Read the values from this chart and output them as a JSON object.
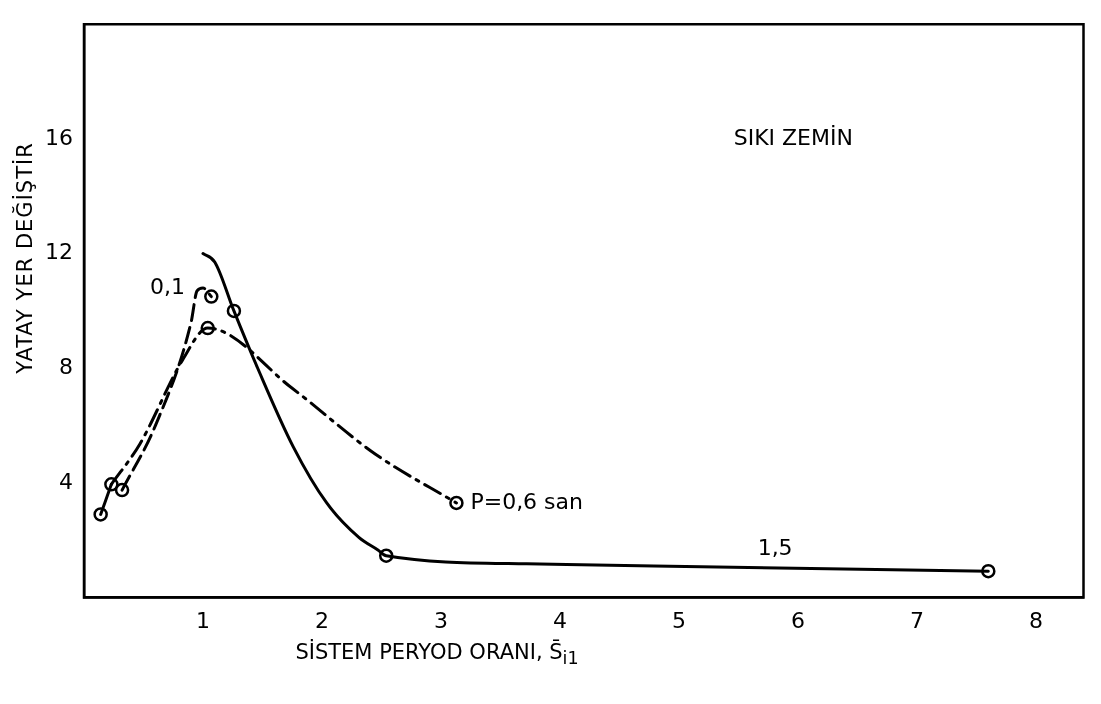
{
  "chart_data": {
    "type": "line",
    "xlabel": "SİSTEM PERYOD ORANI, S̄$_{i1}$",
    "ylabel": "YATAY YER DEĞİŞTİR",
    "annotations": [
      "SIKI ZEMİN"
    ],
    "xlim": [
      0,
      8.4
    ],
    "xticks": [
      1,
      2,
      3,
      4,
      5,
      6,
      7,
      8
    ],
    "ylim": [
      0,
      20
    ],
    "yticks": [
      4,
      8,
      12,
      16
    ],
    "grid": false,
    "legend": false,
    "marker": "none",
    "series": [
      {
        "name": "0,1",
        "line_style": "dashed",
        "color": "#000000",
        "x": [
          0.32,
          0.6,
          0.9,
          0.95,
          1.0,
          1.07
        ],
        "values": [
          3.75,
          6.0,
          9.6,
          10.7,
          10.8,
          10.5
        ]
      },
      {
        "name": "P=0,6 san",
        "line_style": "dashdot",
        "color": "#000000",
        "x": [
          0.23,
          0.47,
          0.83,
          1.04,
          1.75,
          2.45,
          3.13
        ],
        "values": [
          3.95,
          5.36,
          8.3,
          9.4,
          7.3,
          5.0,
          3.3
        ]
      },
      {
        "name": "1,5",
        "line_style": "solid",
        "color": "#000000",
        "x": [
          1.0,
          1.1,
          1.26,
          1.46,
          1.76,
          2.04,
          2.31,
          2.47,
          2.54,
          3.72,
          4.79,
          7.6
        ],
        "values": [
          12.0,
          11.7,
          10.0,
          8.0,
          5.25,
          3.3,
          2.1,
          1.66,
          1.46,
          1.18,
          1.1,
          0.92
        ]
      },
      {
        "line_style": "solid",
        "color": "#000000",
        "x": [
          0.14,
          0.23
        ],
        "values": [
          2.9,
          3.95
        ]
      },
      {
        "type": "scatter",
        "marker": "circle",
        "color": "#000000",
        "x": [
          0.14,
          0.23,
          0.32,
          1.07,
          1.04,
          1.26,
          3.13,
          2.54,
          7.6
        ],
        "values": [
          2.9,
          3.95,
          3.75,
          10.5,
          9.4,
          10.0,
          3.3,
          1.46,
          0.92
        ]
      }
    ]
  }
}
